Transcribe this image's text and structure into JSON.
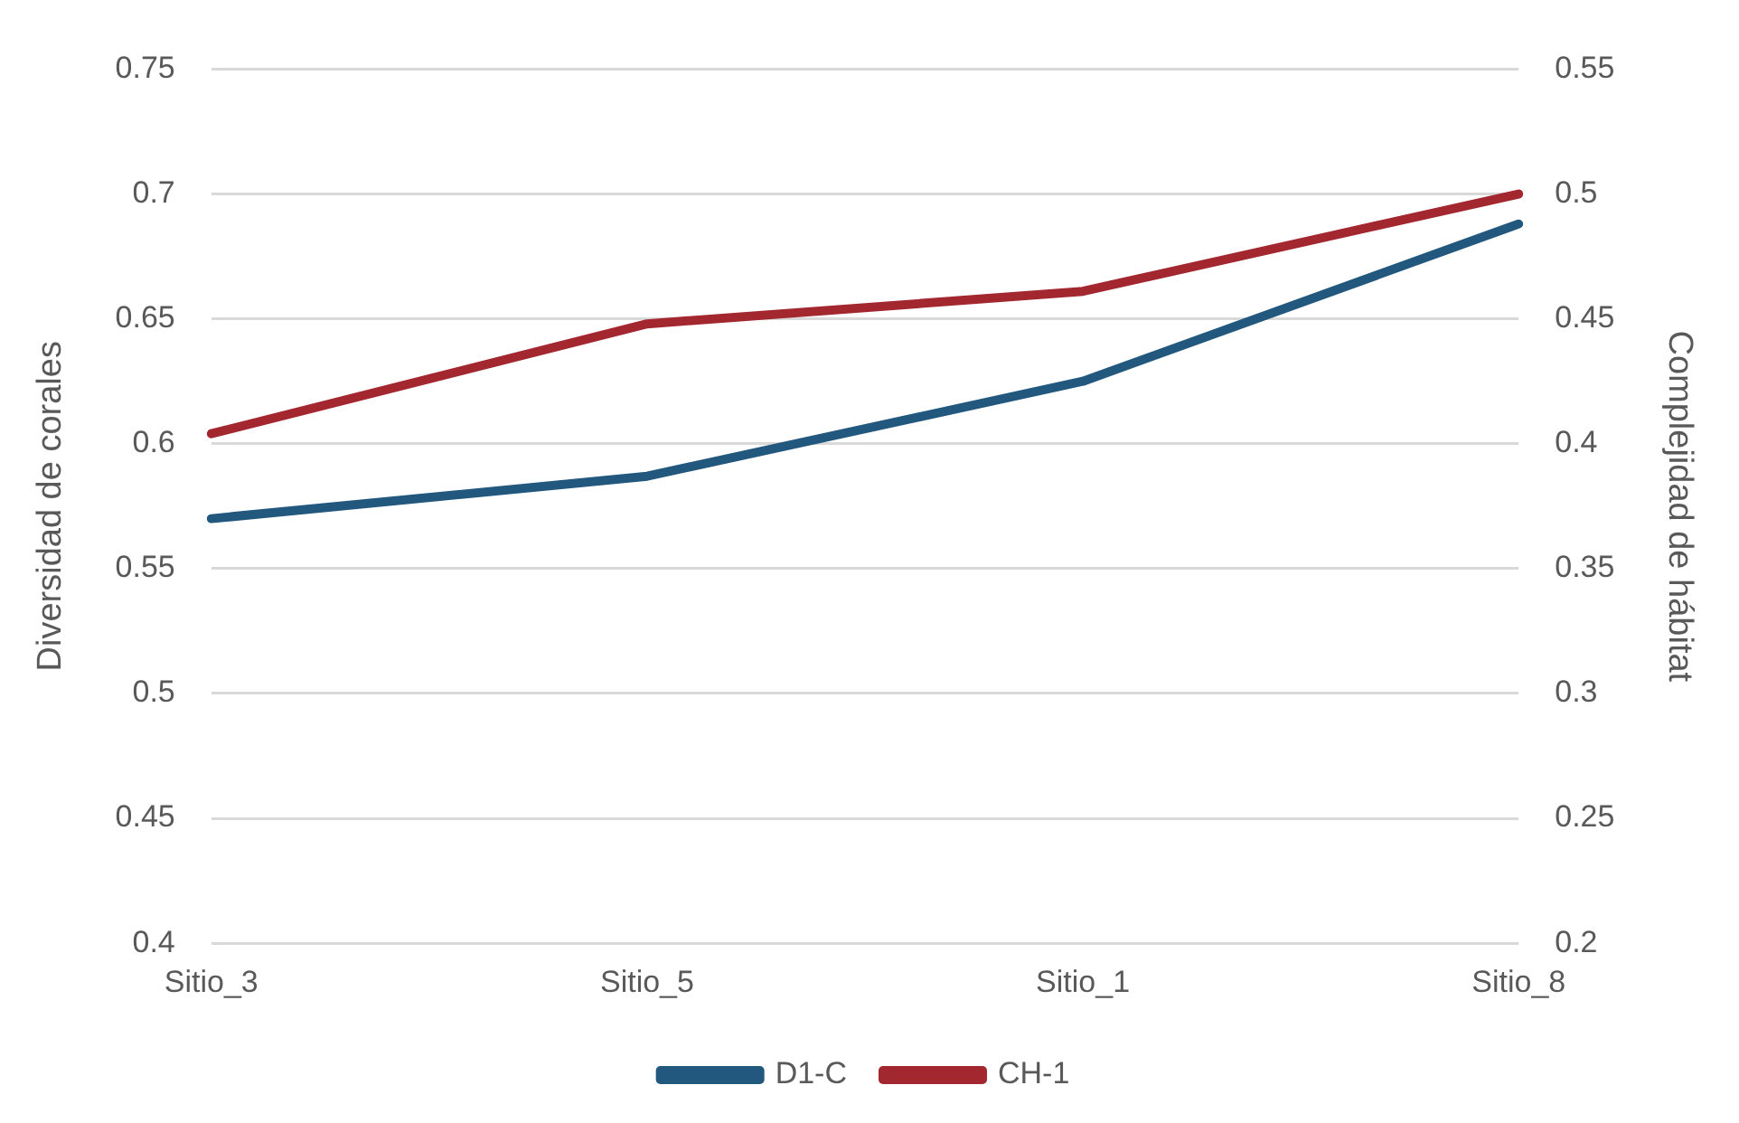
{
  "chart_data": {
    "type": "line",
    "categories": [
      "Sitio_3",
      "Sitio_5",
      "Sitio_1",
      "Sitio_8"
    ],
    "series": [
      {
        "name": "D1-C",
        "color": "#23587e",
        "values": [
          0.57,
          0.587,
          0.625,
          0.688
        ]
      },
      {
        "name": "CH-1",
        "color": "#a3272f",
        "axis": "y2",
        "values": [
          0.404,
          0.448,
          0.461,
          0.5
        ]
      }
    ],
    "ylabel": "Diversidad de corales",
    "y2label": "Complejidad de hábitat",
    "ylim": [
      0.4,
      0.75
    ],
    "yticks": [
      0.4,
      0.45,
      0.5,
      0.55,
      0.6,
      0.65,
      0.7,
      0.75
    ],
    "y2lim": [
      0.2,
      0.55
    ],
    "y2ticks": [
      0.2,
      0.25,
      0.3,
      0.35,
      0.4,
      0.45,
      0.5,
      0.55
    ],
    "grid": "y",
    "legend": "bottom",
    "marker": "none",
    "line_style": "solid"
  }
}
